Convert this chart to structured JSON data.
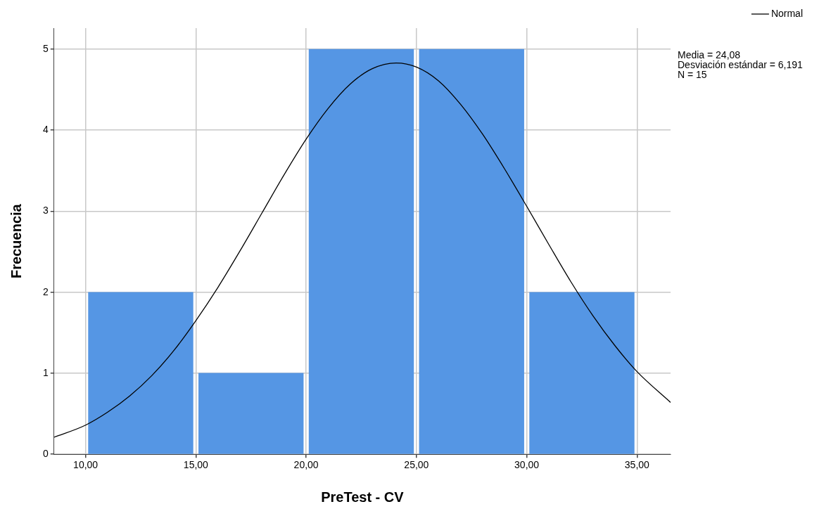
{
  "chart_data": {
    "type": "histogram",
    "xlabel": "PreTest - CV",
    "ylabel": "Frecuencia",
    "bins": [
      10,
      15,
      20,
      25,
      30,
      35
    ],
    "series": [
      {
        "color": "#5596e4",
        "values": [
          2,
          1,
          5,
          5,
          2
        ]
      },
      {
        "type": "line",
        "name": "Normal",
        "color": "#000000",
        "marker": "none",
        "x": [
          8.57,
          10,
          11,
          12,
          13,
          14,
          15,
          16,
          17,
          18,
          19,
          20,
          21,
          22,
          23,
          24.08,
          25,
          26,
          27,
          28,
          29,
          30,
          31,
          32,
          33,
          34,
          35,
          36.52
        ],
        "values": [
          0.21,
          0.36,
          0.52,
          0.72,
          0.97,
          1.28,
          1.65,
          2.06,
          2.51,
          2.98,
          3.45,
          3.89,
          4.27,
          4.57,
          4.76,
          4.83,
          4.78,
          4.61,
          4.32,
          3.95,
          3.52,
          3.06,
          2.59,
          2.13,
          1.71,
          1.34,
          1.02,
          0.64
        ]
      }
    ],
    "xlim": [
      8.57,
      36.52
    ],
    "xticks": [
      {
        "value": 10,
        "label": "10,00"
      },
      {
        "value": 15,
        "label": "15,00"
      },
      {
        "value": 20,
        "label": "20,00"
      },
      {
        "value": 25,
        "label": "25,00"
      },
      {
        "value": 30,
        "label": "30,00"
      },
      {
        "value": 35,
        "label": "35,00"
      }
    ],
    "ylim": [
      0,
      5.26
    ],
    "yticks": [
      0,
      1,
      2,
      3,
      4,
      5
    ],
    "grid": true,
    "legend": "top right",
    "annotations": [
      "Media = 24,08",
      "Desviación estándar = 6,191",
      "N = 15"
    ]
  }
}
